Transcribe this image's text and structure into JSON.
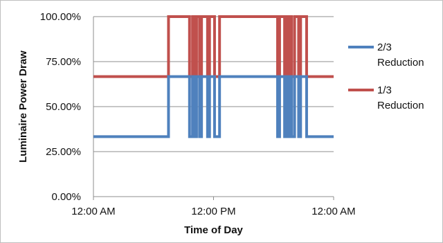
{
  "chart_data": {
    "type": "line",
    "title": "",
    "xlabel": "Time of Day",
    "ylabel": "Luminaire Power Draw",
    "x_unit": "hours since 12:00 AM",
    "xlim": [
      0,
      24
    ],
    "ylim": [
      0,
      1
    ],
    "x_ticks": [
      {
        "value": 0,
        "label": "12:00 AM"
      },
      {
        "value": 12,
        "label": "12:00 PM"
      },
      {
        "value": 24,
        "label": "12:00 AM"
      }
    ],
    "y_ticks": [
      {
        "value": 0,
        "label": "0.00%"
      },
      {
        "value": 0.25,
        "label": "25.00%"
      },
      {
        "value": 0.5,
        "label": "50.00%"
      },
      {
        "value": 0.75,
        "label": "75.00%"
      },
      {
        "value": 1,
        "label": "100.00%"
      }
    ],
    "grid": "horizontal",
    "legend_position": "right",
    "series": [
      {
        "name": "1/3 Reduction",
        "color": "#c0504d",
        "points": [
          [
            0,
            0.667
          ],
          [
            7.5,
            0.667
          ],
          [
            7.5,
            1
          ],
          [
            9.6,
            1
          ],
          [
            9.6,
            0.667
          ],
          [
            9.9,
            0.667
          ],
          [
            9.9,
            1
          ],
          [
            10.1,
            1
          ],
          [
            10.1,
            0.667
          ],
          [
            10.3,
            0.667
          ],
          [
            10.3,
            1
          ],
          [
            10.6,
            1
          ],
          [
            10.6,
            0.667
          ],
          [
            10.8,
            0.667
          ],
          [
            10.8,
            1
          ],
          [
            11.4,
            1
          ],
          [
            11.4,
            0.667
          ],
          [
            11.6,
            0.667
          ],
          [
            11.6,
            1
          ],
          [
            12.1,
            1
          ],
          [
            12.1,
            0.667
          ],
          [
            12.6,
            0.667
          ],
          [
            12.6,
            1
          ],
          [
            18.4,
            1
          ],
          [
            18.4,
            0.667
          ],
          [
            18.6,
            0.667
          ],
          [
            18.6,
            1
          ],
          [
            19.1,
            1
          ],
          [
            19.1,
            0.667
          ],
          [
            19.3,
            0.667
          ],
          [
            19.3,
            1
          ],
          [
            19.5,
            1
          ],
          [
            19.5,
            0.667
          ],
          [
            19.6,
            0.667
          ],
          [
            19.6,
            1
          ],
          [
            19.8,
            1
          ],
          [
            19.8,
            0.667
          ],
          [
            20.1,
            0.667
          ],
          [
            20.1,
            1
          ],
          [
            20.5,
            1
          ],
          [
            20.5,
            0.667
          ],
          [
            20.7,
            0.667
          ],
          [
            20.7,
            1
          ],
          [
            21.3,
            1
          ],
          [
            21.3,
            0.667
          ],
          [
            24,
            0.667
          ]
        ]
      },
      {
        "name": "2/3 Reduction",
        "color": "#4f81bd",
        "points": [
          [
            0,
            0.333
          ],
          [
            7.5,
            0.333
          ],
          [
            7.5,
            0.667
          ],
          [
            9.6,
            0.667
          ],
          [
            9.6,
            0.333
          ],
          [
            9.9,
            0.333
          ],
          [
            9.9,
            0.667
          ],
          [
            10.1,
            0.667
          ],
          [
            10.1,
            0.333
          ],
          [
            10.3,
            0.333
          ],
          [
            10.3,
            0.667
          ],
          [
            10.6,
            0.667
          ],
          [
            10.6,
            0.333
          ],
          [
            10.8,
            0.333
          ],
          [
            10.8,
            0.667
          ],
          [
            11.4,
            0.667
          ],
          [
            11.4,
            0.333
          ],
          [
            11.6,
            0.333
          ],
          [
            11.6,
            0.667
          ],
          [
            12.1,
            0.667
          ],
          [
            12.1,
            0.333
          ],
          [
            12.6,
            0.333
          ],
          [
            12.6,
            0.667
          ],
          [
            18.4,
            0.667
          ],
          [
            18.4,
            0.333
          ],
          [
            18.6,
            0.333
          ],
          [
            18.6,
            0.667
          ],
          [
            19.1,
            0.667
          ],
          [
            19.1,
            0.333
          ],
          [
            19.3,
            0.333
          ],
          [
            19.3,
            0.667
          ],
          [
            19.5,
            0.667
          ],
          [
            19.5,
            0.333
          ],
          [
            19.6,
            0.333
          ],
          [
            19.6,
            0.667
          ],
          [
            19.8,
            0.667
          ],
          [
            19.8,
            0.333
          ],
          [
            20.1,
            0.333
          ],
          [
            20.1,
            0.667
          ],
          [
            20.5,
            0.667
          ],
          [
            20.5,
            0.333
          ],
          [
            20.7,
            0.333
          ],
          [
            20.7,
            0.667
          ],
          [
            21.3,
            0.667
          ],
          [
            21.3,
            0.333
          ],
          [
            24,
            0.333
          ]
        ]
      }
    ],
    "legend": [
      {
        "name_line1": "2/3",
        "name_line2": "Reduction",
        "color": "#4f81bd"
      },
      {
        "name_line1": "1/3",
        "name_line2": "Reduction",
        "color": "#c0504d"
      }
    ]
  }
}
